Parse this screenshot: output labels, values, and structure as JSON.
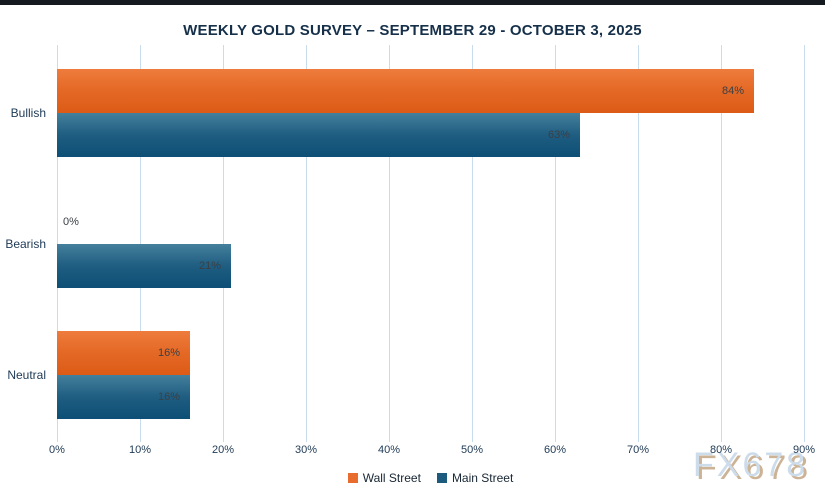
{
  "page": {
    "watermark": "FX678"
  },
  "chart_data": {
    "type": "bar",
    "orientation": "horizontal",
    "title": "WEEKLY GOLD SURVEY – SEPTEMBER 29 - OCTOBER 3, 2025",
    "categories": [
      "Bullish",
      "Bearish",
      "Neutral"
    ],
    "series": [
      {
        "name": "Wall Street",
        "color": "#e76c2e",
        "values": [
          84,
          0,
          16
        ]
      },
      {
        "name": "Main Street",
        "color": "#1d5b7e",
        "values": [
          63,
          21,
          16
        ]
      }
    ],
    "data_labels": {
      "Wall Street": [
        "84%",
        "0%",
        "16%"
      ],
      "Main Street": [
        "63%",
        "21%",
        "16%"
      ]
    },
    "x_ticks": [
      "0%",
      "10%",
      "20%",
      "30%",
      "40%",
      "50%",
      "60%",
      "70%",
      "80%",
      "90%"
    ],
    "xlim": [
      0,
      90
    ],
    "grid": true,
    "legend_position": "bottom",
    "colors": {
      "grid": "#c8dcec",
      "axis_text": "#1e3a55",
      "title_text": "#16304a",
      "bar_label_text": "#3a4046"
    }
  }
}
